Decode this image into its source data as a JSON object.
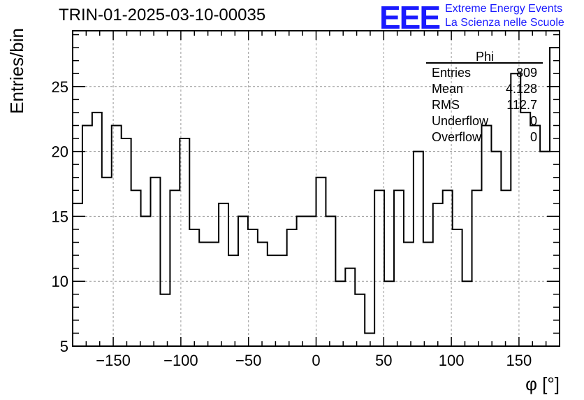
{
  "header": {
    "title": "TRIN-01-2025-03-10-00035",
    "logo_mark": "EEE",
    "logo_line1": "Extreme Energy Events",
    "logo_line2": "La Scienza nelle Scuole"
  },
  "stats_box": {
    "title": "Phi",
    "rows": [
      {
        "label": "Entries",
        "value": "809"
      },
      {
        "label": "Mean",
        "value": "4.128"
      },
      {
        "label": "RMS",
        "value": "112.7"
      },
      {
        "label": "Underflow",
        "value": "0"
      },
      {
        "label": "Overflow",
        "value": "0"
      }
    ]
  },
  "chart_data": {
    "type": "bar",
    "style": "step-histogram",
    "xlabel": "φ [°]",
    "ylabel": "Entries/bin",
    "xlim": [
      -180,
      180
    ],
    "ylim": [
      5,
      29.3
    ],
    "x_ticks": [
      -150,
      -100,
      -50,
      0,
      50,
      100,
      150
    ],
    "x_tick_labels": [
      "−150",
      "−100",
      "−50",
      "0",
      "50",
      "100",
      "150"
    ],
    "y_ticks": [
      5,
      10,
      15,
      20,
      25
    ],
    "y_tick_labels": [
      "5",
      "10",
      "15",
      "20",
      "25"
    ],
    "grid": true,
    "bin_edges_start": -180,
    "bin_width": 7.2,
    "values": [
      16,
      22,
      23,
      18,
      22,
      21,
      17,
      15,
      18,
      9,
      17,
      21,
      14,
      13,
      13,
      16,
      12,
      15,
      14,
      13,
      12,
      12,
      14,
      15,
      15,
      18,
      15,
      10,
      11,
      9,
      6,
      17,
      10,
      17,
      13,
      20,
      13,
      16,
      17,
      14,
      10,
      17,
      22,
      20,
      17,
      26,
      23,
      22,
      20,
      28
    ]
  }
}
